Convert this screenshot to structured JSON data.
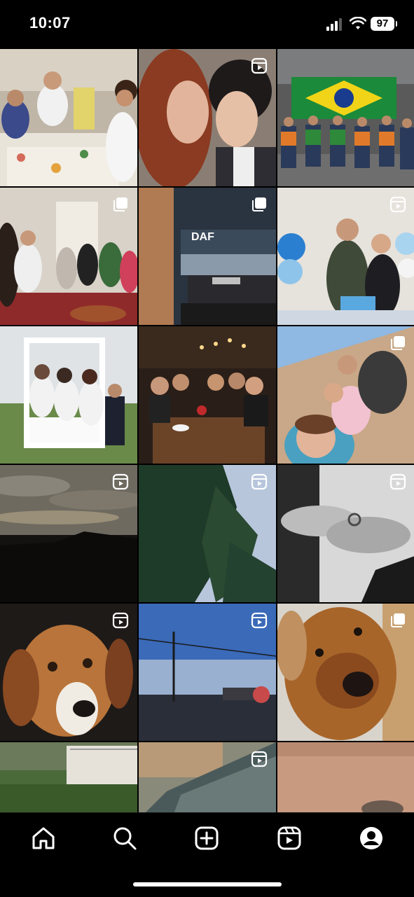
{
  "status_bar": {
    "time": "10:07",
    "battery": "97"
  },
  "tiles": [
    {
      "name": "family-dinner-post",
      "kind": "photo",
      "badge": ""
    },
    {
      "name": "couple-kiss-reel",
      "kind": "photo",
      "badge": "reel"
    },
    {
      "name": "truck-team-flag-post",
      "kind": "photo",
      "badge": ""
    },
    {
      "name": "family-gathering-carousel",
      "kind": "photo",
      "badge": "carousel"
    },
    {
      "name": "daf-truck-carousel",
      "kind": "photo",
      "badge": "carousel"
    },
    {
      "name": "birthday-couple-reel",
      "kind": "photo",
      "badge": "reel"
    },
    {
      "name": "photo-frame-friends-post",
      "kind": "photo",
      "badge": ""
    },
    {
      "name": "restaurant-friends-post",
      "kind": "photo",
      "badge": ""
    },
    {
      "name": "selfie-group-carousel",
      "kind": "photo",
      "badge": "carousel"
    },
    {
      "name": "cloudy-sky-reel",
      "kind": "photo",
      "badge": "reel"
    },
    {
      "name": "tree-sky-reel",
      "kind": "photo",
      "badge": "reel"
    },
    {
      "name": "hands-ring-reel",
      "kind": "photo",
      "badge": "reel"
    },
    {
      "name": "beagle-dog-reel",
      "kind": "photo",
      "badge": "reel"
    },
    {
      "name": "foggy-street-reel",
      "kind": "photo",
      "badge": "reel"
    },
    {
      "name": "brown-dog-carousel",
      "kind": "photo",
      "badge": "carousel"
    },
    {
      "name": "garden-lawn-post",
      "kind": "photo",
      "badge": ""
    },
    {
      "name": "car-window-reel",
      "kind": "photo",
      "badge": "reel"
    },
    {
      "name": "dirt-ground-post",
      "kind": "photo",
      "badge": ""
    }
  ],
  "nav": {
    "items": [
      {
        "name": "home",
        "icon": "home-icon"
      },
      {
        "name": "search",
        "icon": "search-icon"
      },
      {
        "name": "create",
        "icon": "plus-square-icon"
      },
      {
        "name": "reels",
        "icon": "reels-icon"
      },
      {
        "name": "profile",
        "icon": "profile-icon"
      }
    ]
  },
  "colors": {
    "background": "#000000",
    "foreground": "#ffffff"
  }
}
